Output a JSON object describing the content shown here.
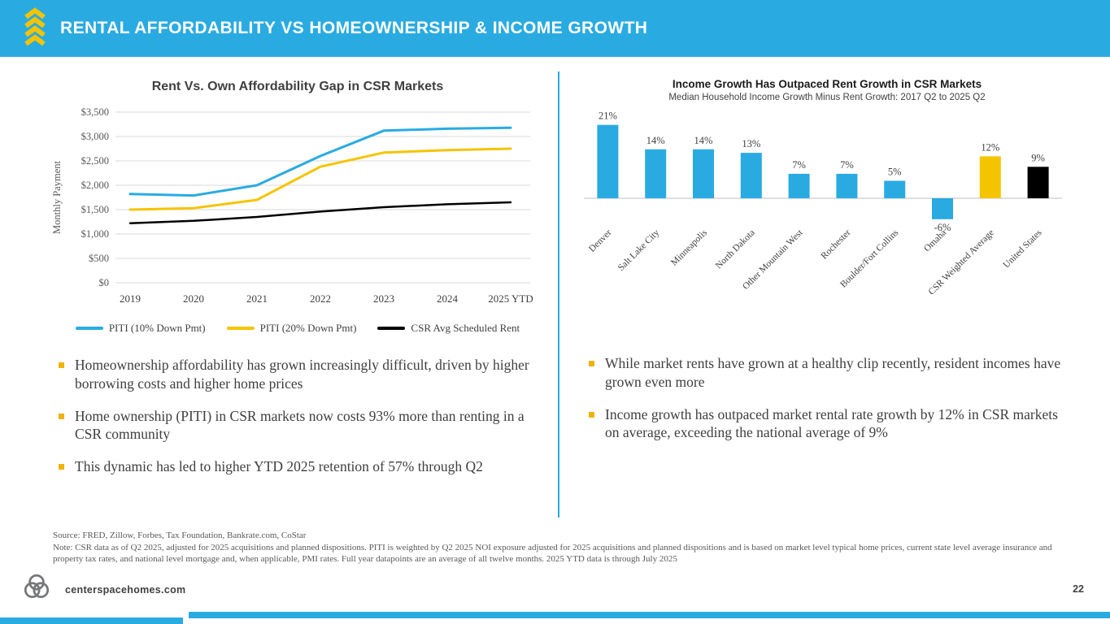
{
  "header": {
    "title": "RENTAL AFFORDABILITY VS HOMEOWNERSHIP & INCOME GROWTH"
  },
  "colors": {
    "accent_cyan": "#29ABE2",
    "gold": "#F5C400",
    "bullet_gold": "#EFB30F",
    "black": "#000000",
    "text_dark": "#3F3F3F",
    "text_gray": "#595959"
  },
  "chart_data": [
    {
      "type": "line",
      "title": "Rent Vs. Own Affordability Gap in CSR Markets",
      "ylabel": "Monthly Payment",
      "categories": [
        "2019",
        "2020",
        "2021",
        "2022",
        "2023",
        "2024",
        "2025 YTD"
      ],
      "ylim": [
        0,
        3500
      ],
      "ytick_step": 500,
      "ytick_labels": [
        "$0",
        "$500",
        "$1,000",
        "$1,500",
        "$2,000",
        "$2,500",
        "$3,000",
        "$3,500"
      ],
      "grid": true,
      "legend_position": "bottom",
      "series": [
        {
          "name": "PITI (10% Down Pmt)",
          "color": "#29ABE2",
          "width": 3,
          "values": [
            1820,
            1790,
            2000,
            2600,
            3120,
            3160,
            3180
          ]
        },
        {
          "name": "PITI (20% Down Pmt)",
          "color": "#F5C400",
          "width": 3,
          "values": [
            1500,
            1530,
            1700,
            2380,
            2670,
            2720,
            2750
          ]
        },
        {
          "name": "CSR Avg Scheduled Rent",
          "color": "#000000",
          "width": 2.5,
          "values": [
            1220,
            1270,
            1350,
            1460,
            1550,
            1610,
            1650
          ]
        }
      ]
    },
    {
      "type": "bar",
      "title": "Income Growth Has Outpaced Rent Growth in CSR Markets",
      "subtitle": "Median Household Income Growth Minus Rent Growth: 2017 Q2 to 2025 Q2",
      "categories": [
        "Denver",
        "Salt Lake City",
        "Minneapolis",
        "North Dakota",
        "Other Mountain West",
        "Rochester",
        "Boulder/Fort Collins",
        "Omaha",
        "CSR Weighted Average",
        "United States"
      ],
      "values": [
        21,
        14,
        14,
        13,
        7,
        7,
        5,
        -6,
        12,
        9
      ],
      "value_labels": [
        "21%",
        "14%",
        "14%",
        "13%",
        "7%",
        "7%",
        "5%",
        "-6%",
        "12%",
        "9%"
      ],
      "bar_colors": [
        "#29ABE2",
        "#29ABE2",
        "#29ABE2",
        "#29ABE2",
        "#29ABE2",
        "#29ABE2",
        "#29ABE2",
        "#29ABE2",
        "#F5C400",
        "#000000"
      ],
      "ylim": [
        -8,
        23
      ],
      "grid": false
    }
  ],
  "bullets": {
    "left": [
      "Homeownership affordability has grown increasingly difficult, driven by higher borrowing costs and higher home prices",
      "Home ownership (PITI) in CSR markets now costs 93% more than renting in a CSR community",
      "This dynamic has led to higher YTD 2025 retention of 57% through Q2"
    ],
    "right": [
      "While market rents have grown at a healthy clip recently, resident incomes have grown even more",
      "Income growth has outpaced market rental rate growth by 12% in CSR markets on average, exceeding the national average of 9%"
    ]
  },
  "footer": {
    "source": "Source: FRED, Zillow, Forbes, Tax Foundation, Bankrate.com, CoStar",
    "note": "Note: CSR data as of Q2 2025, adjusted for 2025 acquisitions and planned dispositions. PITI is weighted by Q2 2025 NOI exposure adjusted for 2025 acquisitions and planned dispositions and is based on market level typical home prices, current state level average insurance and property tax rates, and national level mortgage and, when applicable, PMI rates. Full year datapoints are an average of all twelve months. 2025 YTD data is through July 2025",
    "site": "centerspacehomes.com",
    "page": "22"
  }
}
